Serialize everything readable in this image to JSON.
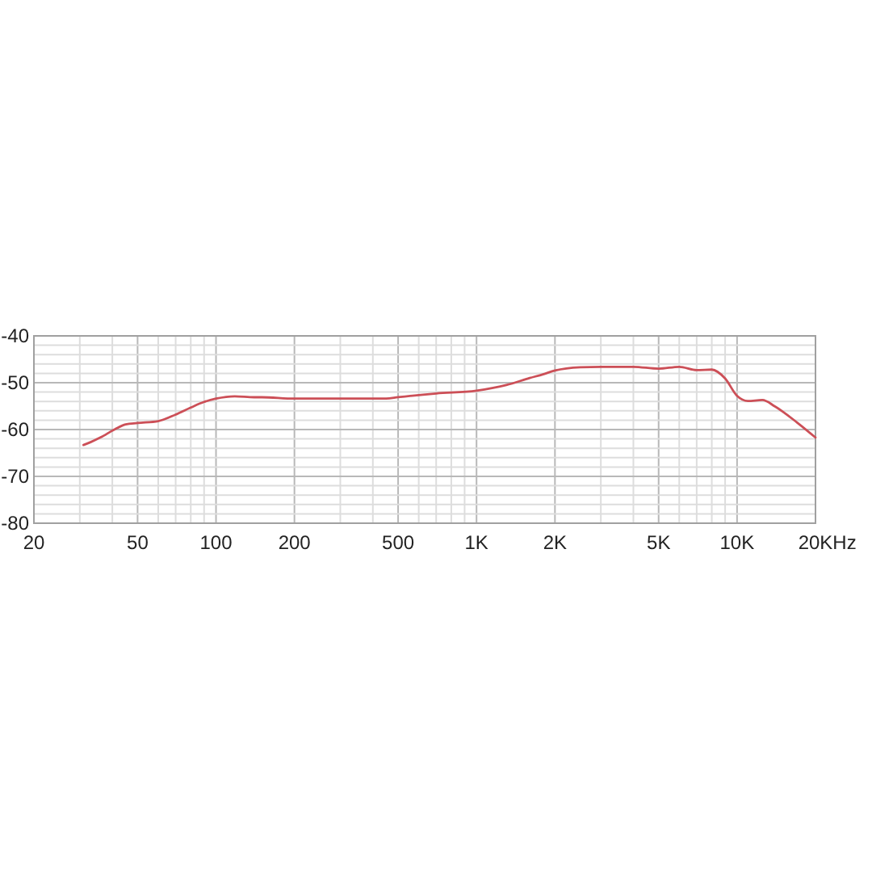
{
  "chart_data": {
    "type": "line",
    "log": "x",
    "grid": true,
    "color": "#cc4f57",
    "xlabel": "Hz",
    "x": [
      31,
      33,
      36,
      41,
      45,
      50,
      60,
      70,
      80,
      90,
      100,
      118,
      140,
      150,
      200,
      300,
      450,
      500,
      700,
      1000,
      1300,
      1600,
      1800,
      2000,
      2500,
      3000,
      4000,
      5000,
      6000,
      7000,
      8000,
      9000,
      10000,
      11000,
      12500,
      14000,
      17000,
      20000
    ],
    "values": [
      -63.3,
      -62.7,
      -61.7,
      -59.9,
      -58.9,
      -58.6,
      -58.2,
      -56.8,
      -55.3,
      -54.1,
      -53.4,
      -52.9,
      -53.1,
      -53.1,
      -53.4,
      -53.4,
      -53.4,
      -53.1,
      -52.3,
      -51.7,
      -50.5,
      -49.0,
      -48.2,
      -47.4,
      -46.7,
      -46.6,
      -46.6,
      -47.0,
      -46.6,
      -47.3,
      -47.2,
      -49.1,
      -52.8,
      -53.9,
      -53.7,
      -55.1,
      -58.5,
      -61.7
    ],
    "xlim": [
      20,
      20000
    ],
    "ylim": [
      -80,
      -40
    ],
    "xticks": [
      20,
      {
        "value": 30,
        "label": null
      },
      {
        "value": 40,
        "label": null
      },
      50,
      {
        "value": 60,
        "label": null
      },
      {
        "value": 70,
        "label": null
      },
      {
        "value": 80,
        "label": null
      },
      {
        "value": 90,
        "label": null
      },
      100,
      200,
      {
        "value": 300,
        "label": null
      },
      {
        "value": 400,
        "label": null
      },
      500,
      {
        "value": 600,
        "label": null
      },
      {
        "value": 700,
        "label": null
      },
      {
        "value": 800,
        "label": null
      },
      {
        "value": 900,
        "label": null
      },
      {
        "value": 1000,
        "label": "1K"
      },
      {
        "value": 2000,
        "label": "2K"
      },
      {
        "value": 3000,
        "label": null
      },
      {
        "value": 4000,
        "label": null
      },
      {
        "value": 5000,
        "label": "5K"
      },
      {
        "value": 6000,
        "label": null
      },
      {
        "value": 7000,
        "label": null
      },
      {
        "value": 8000,
        "label": null
      },
      {
        "value": 9000,
        "label": null
      },
      {
        "value": 10000,
        "label": "10K"
      },
      {
        "value": 20000,
        "label": "20K"
      }
    ],
    "yticks": [
      -80,
      {
        "value": -78,
        "label": null
      },
      {
        "value": -76,
        "label": null
      },
      {
        "value": -74,
        "label": null
      },
      {
        "value": -72,
        "label": null
      },
      -70,
      {
        "value": -68,
        "label": null
      },
      {
        "value": -66,
        "label": null
      },
      {
        "value": -64,
        "label": null
      },
      {
        "value": -62,
        "label": null
      },
      -60,
      {
        "value": -58,
        "label": null
      },
      {
        "value": -56,
        "label": null
      },
      {
        "value": -54,
        "label": null
      },
      {
        "value": -52,
        "label": null
      },
      -50,
      {
        "value": -48,
        "label": null
      },
      {
        "value": -46,
        "label": null
      },
      {
        "value": -44,
        "label": null
      },
      {
        "value": -42,
        "label": null
      },
      -40
    ]
  }
}
